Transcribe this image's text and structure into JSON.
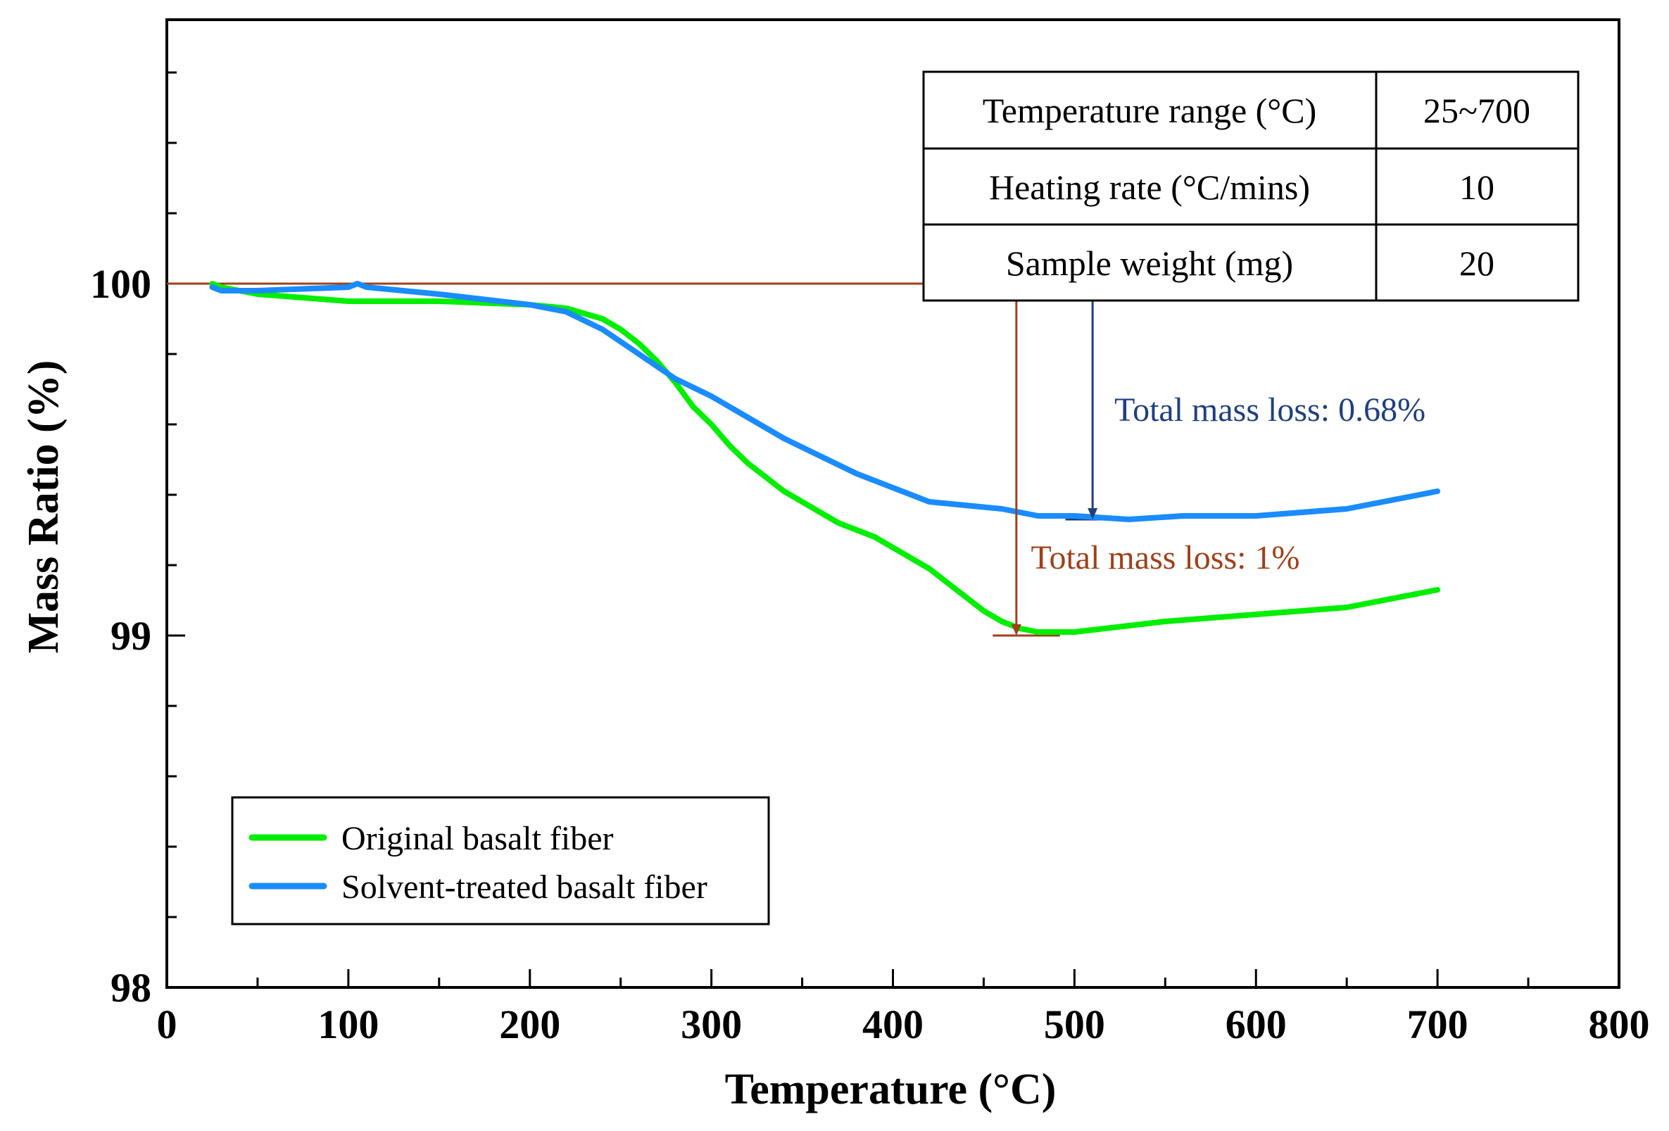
{
  "chart_data": {
    "type": "line",
    "xlabel": "Temperature (°C)",
    "ylabel": "Mass Ratio (%)",
    "xlim": [
      0,
      800
    ],
    "ylim": [
      98,
      100.75
    ],
    "x_ticks": [
      0,
      100,
      200,
      300,
      400,
      500,
      600,
      700,
      800
    ],
    "x_tick_labels": [
      "0",
      "100",
      "200",
      "300",
      "400",
      "500",
      "600",
      "700",
      "800"
    ],
    "x_minor_step": 50,
    "y_ticks": [
      98,
      99,
      100
    ],
    "y_tick_labels": [
      "98",
      "99",
      "100"
    ],
    "y_minor_step": 0.2,
    "grid": false,
    "legend_position": "bottom-left",
    "series": [
      {
        "name": "Original basalt fiber",
        "color": "#00ee00",
        "x": [
          25,
          30,
          50,
          100,
          150,
          200,
          220,
          240,
          250,
          260,
          270,
          280,
          290,
          300,
          310,
          320,
          330,
          340,
          350,
          360,
          370,
          380,
          390,
          400,
          410,
          420,
          430,
          440,
          450,
          460,
          470,
          480,
          490,
          500,
          550,
          600,
          650,
          700
        ],
        "y": [
          100.0,
          99.99,
          99.97,
          99.95,
          99.95,
          99.94,
          99.93,
          99.9,
          99.87,
          99.83,
          99.78,
          99.72,
          99.65,
          99.6,
          99.54,
          99.49,
          99.45,
          99.41,
          99.38,
          99.35,
          99.32,
          99.3,
          99.28,
          99.25,
          99.22,
          99.19,
          99.15,
          99.11,
          99.07,
          99.04,
          99.02,
          99.01,
          99.01,
          99.01,
          99.04,
          99.06,
          99.08,
          99.13
        ]
      },
      {
        "name": "Solvent-treated basalt fiber",
        "color": "#1a8cff",
        "x": [
          25,
          30,
          50,
          100,
          105,
          110,
          150,
          200,
          220,
          240,
          260,
          280,
          300,
          320,
          340,
          360,
          380,
          400,
          420,
          440,
          460,
          480,
          500,
          530,
          560,
          600,
          650,
          700
        ],
        "y": [
          99.99,
          99.98,
          99.98,
          99.99,
          100.0,
          99.99,
          99.97,
          99.94,
          99.92,
          99.87,
          99.8,
          99.73,
          99.68,
          99.62,
          99.56,
          99.51,
          99.46,
          99.42,
          99.38,
          99.37,
          99.36,
          99.34,
          99.34,
          99.33,
          99.34,
          99.34,
          99.36,
          99.41
        ]
      }
    ],
    "reference_lines": [
      {
        "name": "baseline",
        "color": "#a0401a",
        "x1": 0,
        "x2": 495,
        "y": 100.0
      },
      {
        "name": "blue-top",
        "color": "#1f3f80",
        "x1": 495,
        "x2": 522,
        "y": 100.0
      },
      {
        "name": "blue-bottom",
        "color": "#1f3f80",
        "x1": 495,
        "x2": 522,
        "y": 99.33
      },
      {
        "name": "red-bottom",
        "color": "#a0401a",
        "x1": 455,
        "x2": 492,
        "y": 99.0
      }
    ],
    "annotations": [
      {
        "label": "Total mass loss: 0.68%",
        "color": "#1f3f80",
        "arrow_x": 510,
        "from": 99.33,
        "to": 100.0,
        "text_x": 522,
        "text_y": 99.61
      },
      {
        "label": "Total mass loss: 1%",
        "color": "#a0401a",
        "arrow_x": 468,
        "from": 99.0,
        "to": 100.0,
        "text_x": 476,
        "text_y": 99.19
      }
    ],
    "info_table": {
      "rows": [
        [
          "Temperature range (°C)",
          "25~700"
        ],
        [
          "Heating rate (°C/mins)",
          "10"
        ],
        [
          "Sample weight (mg)",
          "20"
        ]
      ]
    }
  }
}
